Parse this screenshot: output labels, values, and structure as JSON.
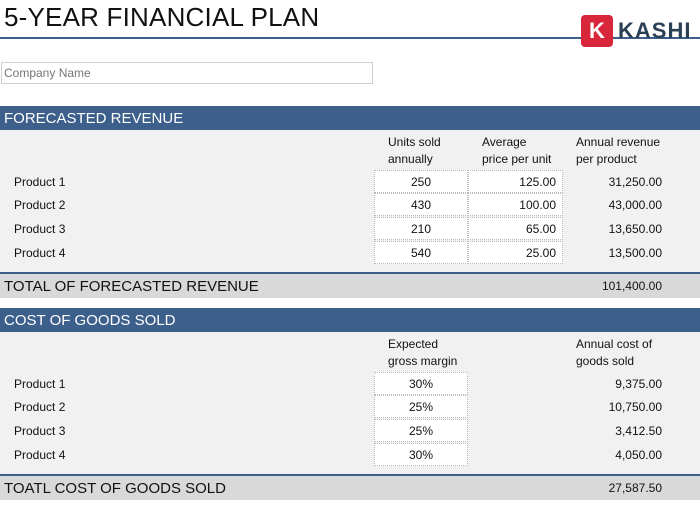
{
  "title": "5-YEAR FINANCIAL PLAN",
  "logo": {
    "letter": "K",
    "text": "KASHI"
  },
  "company_placeholder": "Company Name",
  "revenue": {
    "heading": "FORECASTED REVENUE",
    "col1": [
      "Units sold",
      "annually"
    ],
    "col2": [
      "Average",
      "price per unit"
    ],
    "col3": [
      "Annual revenue",
      "per product"
    ],
    "rows": [
      {
        "label": "Product 1",
        "units": "250",
        "price": "125.00",
        "annual": "31,250.00"
      },
      {
        "label": "Product 2",
        "units": "430",
        "price": "100.00",
        "annual": "43,000.00"
      },
      {
        "label": "Product 3",
        "units": "210",
        "price": "65.00",
        "annual": "13,650.00"
      },
      {
        "label": "Product 4",
        "units": "540",
        "price": "25.00",
        "annual": "13,500.00"
      }
    ],
    "total_label": "TOTAL OF FORECASTED REVENUE",
    "total_value": "101,400.00"
  },
  "cogs": {
    "heading": "COST OF GOODS SOLD",
    "col1": [
      "Expected",
      "gross margin"
    ],
    "col3": [
      "Annual cost of",
      "goods sold"
    ],
    "rows": [
      {
        "label": "Product 1",
        "margin": "30%",
        "cost": "9,375.00"
      },
      {
        "label": "Product 2",
        "margin": "25%",
        "cost": "10,750.00"
      },
      {
        "label": "Product 3",
        "margin": "25%",
        "cost": "3,412.50"
      },
      {
        "label": "Product 4",
        "margin": "30%",
        "cost": "4,050.00"
      }
    ],
    "total_label": "TOATL COST OF GOODS SOLD",
    "total_value": "27,587.50"
  }
}
